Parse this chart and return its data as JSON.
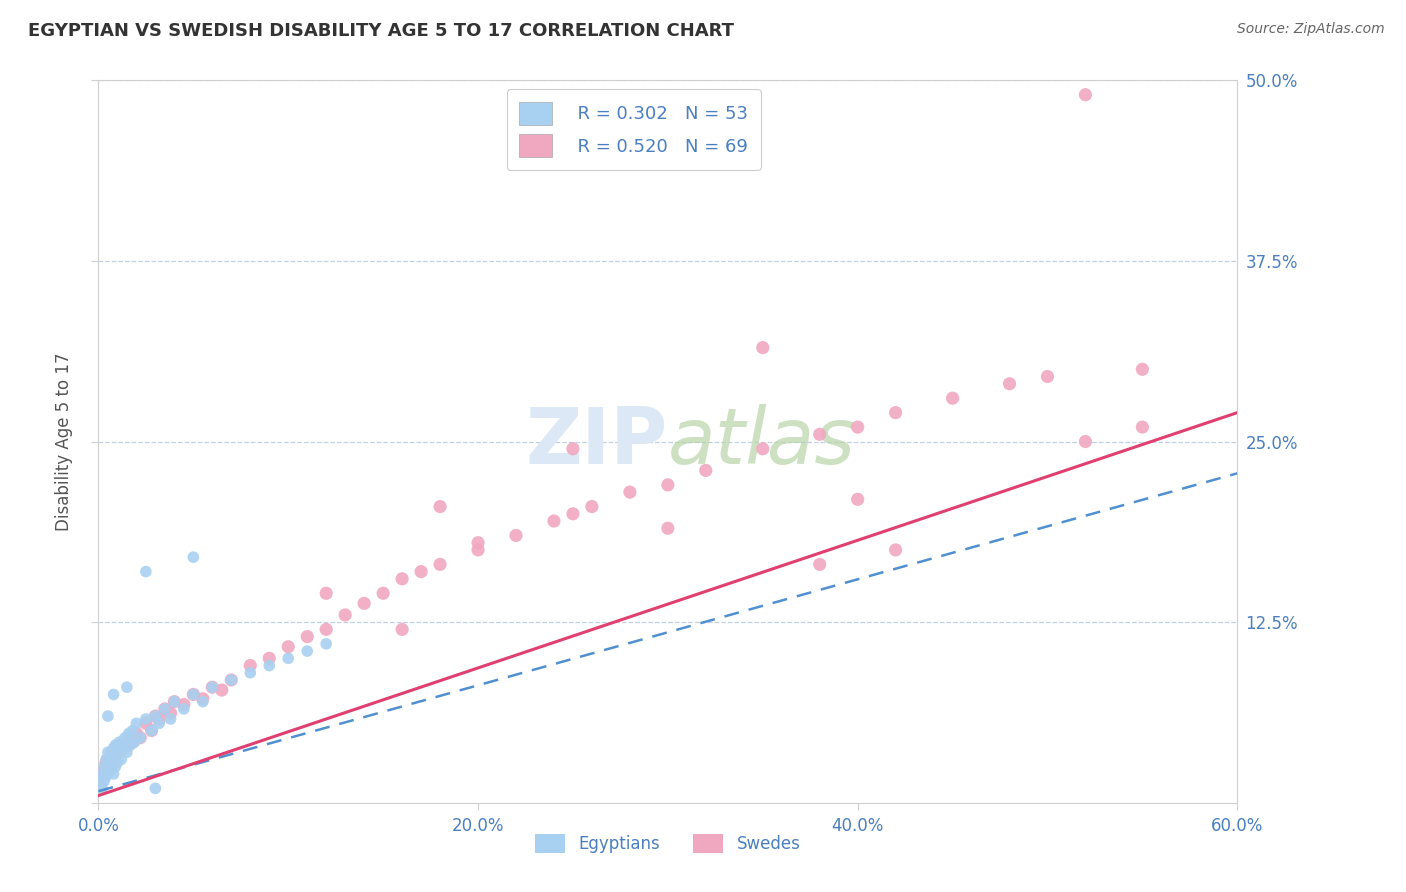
{
  "title": "EGYPTIAN VS SWEDISH DISABILITY AGE 5 TO 17 CORRELATION CHART",
  "source": "Source: ZipAtlas.com",
  "ylabel": "Disability Age 5 to 17",
  "xlim": [
    0.0,
    0.6
  ],
  "ylim": [
    0.0,
    0.5
  ],
  "xtick_vals": [
    0.0,
    0.2,
    0.4,
    0.6
  ],
  "xtick_labels": [
    "0.0%",
    "20.0%",
    "40.0%",
    "60.0%"
  ],
  "ytick_vals": [
    0.0,
    0.125,
    0.25,
    0.375,
    0.5
  ],
  "ytick_labels": [
    "",
    "12.5%",
    "25.0%",
    "37.5%",
    "50.0%"
  ],
  "legend_r1": "R = 0.302",
  "legend_n1": "N = 53",
  "legend_r2": "R = 0.520",
  "legend_n2": "N = 69",
  "egyptian_color": "#a8d0f0",
  "swedish_color": "#f0a8c0",
  "egyptian_line_color": "#5090d0",
  "swedish_line_color": "#e04070",
  "background_color": "#ffffff",
  "grid_color": "#c0d0e0",
  "title_color": "#333333",
  "axis_label_color": "#555555",
  "tick_color": "#4a7fc0",
  "source_color": "#666666",
  "watermark_color": "#dce8f5",
  "egyptians_x": [
    0.001,
    0.002,
    0.002,
    0.003,
    0.003,
    0.004,
    0.004,
    0.005,
    0.005,
    0.006,
    0.006,
    0.007,
    0.007,
    0.008,
    0.008,
    0.009,
    0.009,
    0.01,
    0.011,
    0.011,
    0.012,
    0.013,
    0.014,
    0.015,
    0.016,
    0.017,
    0.018,
    0.019,
    0.02,
    0.022,
    0.025,
    0.028,
    0.03,
    0.032,
    0.035,
    0.038,
    0.04,
    0.045,
    0.05,
    0.055,
    0.06,
    0.07,
    0.08,
    0.09,
    0.1,
    0.11,
    0.12,
    0.025,
    0.03,
    0.005,
    0.008,
    0.015,
    0.05
  ],
  "egyptians_y": [
    0.015,
    0.01,
    0.02,
    0.015,
    0.025,
    0.018,
    0.03,
    0.02,
    0.035,
    0.022,
    0.028,
    0.025,
    0.032,
    0.02,
    0.038,
    0.025,
    0.04,
    0.028,
    0.035,
    0.042,
    0.03,
    0.038,
    0.045,
    0.035,
    0.048,
    0.04,
    0.05,
    0.042,
    0.055,
    0.045,
    0.058,
    0.05,
    0.06,
    0.055,
    0.065,
    0.058,
    0.07,
    0.065,
    0.075,
    0.07,
    0.08,
    0.085,
    0.09,
    0.095,
    0.1,
    0.105,
    0.11,
    0.16,
    0.01,
    0.06,
    0.075,
    0.08,
    0.17
  ],
  "swedes_x": [
    0.001,
    0.002,
    0.003,
    0.004,
    0.005,
    0.006,
    0.007,
    0.008,
    0.009,
    0.01,
    0.012,
    0.014,
    0.016,
    0.018,
    0.02,
    0.022,
    0.025,
    0.028,
    0.03,
    0.032,
    0.035,
    0.038,
    0.04,
    0.045,
    0.05,
    0.055,
    0.06,
    0.065,
    0.07,
    0.08,
    0.09,
    0.1,
    0.11,
    0.12,
    0.13,
    0.14,
    0.15,
    0.16,
    0.17,
    0.18,
    0.2,
    0.22,
    0.24,
    0.26,
    0.28,
    0.3,
    0.32,
    0.35,
    0.38,
    0.4,
    0.42,
    0.45,
    0.48,
    0.5,
    0.52,
    0.55,
    0.2,
    0.25,
    0.3,
    0.35,
    0.4,
    0.12,
    0.16,
    0.38,
    0.42,
    0.25,
    0.18,
    0.52,
    0.55
  ],
  "swedes_y": [
    0.012,
    0.018,
    0.022,
    0.028,
    0.03,
    0.025,
    0.035,
    0.03,
    0.038,
    0.035,
    0.04,
    0.038,
    0.045,
    0.042,
    0.048,
    0.045,
    0.055,
    0.05,
    0.06,
    0.058,
    0.065,
    0.062,
    0.07,
    0.068,
    0.075,
    0.072,
    0.08,
    0.078,
    0.085,
    0.095,
    0.1,
    0.108,
    0.115,
    0.12,
    0.13,
    0.138,
    0.145,
    0.155,
    0.16,
    0.165,
    0.175,
    0.185,
    0.195,
    0.205,
    0.215,
    0.22,
    0.23,
    0.245,
    0.255,
    0.26,
    0.27,
    0.28,
    0.29,
    0.295,
    0.49,
    0.3,
    0.18,
    0.2,
    0.19,
    0.315,
    0.21,
    0.145,
    0.12,
    0.165,
    0.175,
    0.245,
    0.205,
    0.25,
    0.26
  ],
  "eg_line_x0": 0.0,
  "eg_line_y0": 0.008,
  "eg_line_x1": 0.6,
  "eg_line_y1": 0.228,
  "sw_line_x0": 0.0,
  "sw_line_y0": 0.005,
  "sw_line_x1": 0.6,
  "sw_line_y1": 0.27
}
